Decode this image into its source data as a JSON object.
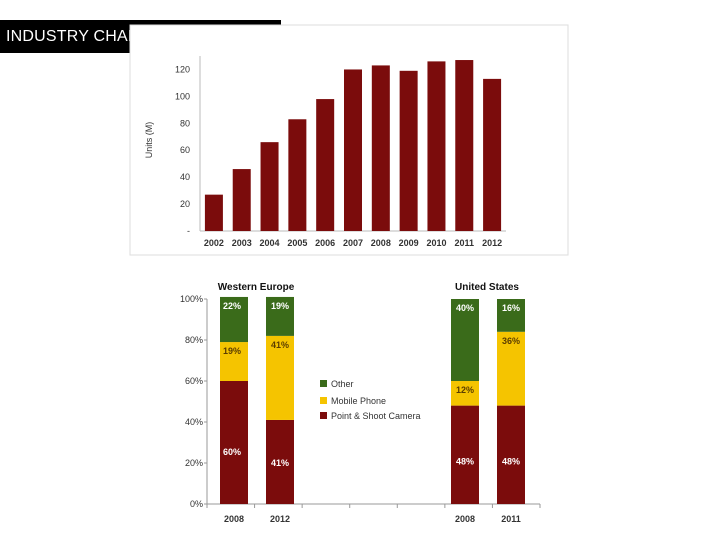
{
  "page": {
    "title": "INDUSTRY CHARACTERISTICS"
  },
  "colors": {
    "bar": "#7b0c0c",
    "point_shoot": "#7b0c0c",
    "mobile": "#f5c400",
    "other": "#3a6b1a"
  },
  "chart_data": [
    {
      "type": "bar",
      "categories": [
        "2002",
        "2003",
        "2004",
        "2005",
        "2006",
        "2007",
        "2008",
        "2009",
        "2010",
        "2011",
        "2012"
      ],
      "values": [
        27,
        46,
        66,
        83,
        98,
        120,
        123,
        119,
        126,
        127,
        113
      ],
      "ylabel": "Units (M)",
      "ylim": [
        0,
        130
      ],
      "yticks": [
        "-",
        "20",
        "40",
        "60",
        "80",
        "100",
        "120"
      ],
      "ytick_values": [
        0,
        20,
        40,
        60,
        80,
        100,
        120
      ]
    },
    {
      "type": "bar",
      "stacked": true,
      "percent": true,
      "groups": [
        {
          "header": "Western Europe",
          "categories": [
            "2008",
            "2012"
          ]
        },
        {
          "header": "United States",
          "categories": [
            "2008",
            "2011"
          ]
        }
      ],
      "categories": [
        "2008",
        "2012",
        "2008",
        "2011"
      ],
      "series": [
        {
          "name": "Point & Shoot Camera",
          "values": [
            60,
            41,
            48,
            48
          ]
        },
        {
          "name": "Mobile Phone",
          "values": [
            19,
            41,
            12,
            36
          ]
        },
        {
          "name": "Other",
          "values": [
            22,
            19,
            40,
            16
          ]
        }
      ],
      "ylim": [
        0,
        100
      ],
      "yticks": [
        "0%",
        "20%",
        "40%",
        "60%",
        "80%",
        "100%"
      ],
      "ytick_values": [
        0,
        20,
        40,
        60,
        80,
        100
      ],
      "legend": [
        "Other",
        "Mobile Phone",
        "Point & Shoot Camera"
      ]
    }
  ]
}
